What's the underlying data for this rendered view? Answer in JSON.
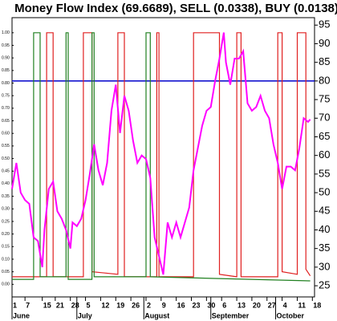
{
  "chart_data": {
    "type": "line",
    "title": "Money Flow Index (69.6689), SELL (0.0338), BUY (0.0138)",
    "xlim": [
      0,
      140
    ],
    "xticks": [
      {
        "value": 0,
        "label": "1"
      },
      {
        "value": 6,
        "label": "7"
      },
      {
        "value": 14,
        "label": "15"
      },
      {
        "value": 20,
        "label": "21"
      },
      {
        "value": 27,
        "label": "28"
      },
      {
        "value": 34,
        "label": "5"
      },
      {
        "value": 41,
        "label": "12"
      },
      {
        "value": 48,
        "label": "19"
      },
      {
        "value": 55,
        "label": "26"
      },
      {
        "value": 62,
        "label": "2"
      },
      {
        "value": 69,
        "label": "9"
      },
      {
        "value": 76,
        "label": "16"
      },
      {
        "value": 83,
        "label": "23"
      },
      {
        "value": 90,
        "label": "30"
      },
      {
        "value": 97,
        "label": "6"
      },
      {
        "value": 104,
        "label": "13"
      },
      {
        "value": 111,
        "label": "20"
      },
      {
        "value": 118,
        "label": "27"
      },
      {
        "value": 125,
        "label": "4"
      },
      {
        "value": 132,
        "label": "11"
      },
      {
        "value": 139,
        "label": "18"
      }
    ],
    "months": [
      {
        "value": 0,
        "label": "June"
      },
      {
        "value": 30,
        "label": "July"
      },
      {
        "value": 61,
        "label": "August"
      },
      {
        "value": 92,
        "label": "September"
      },
      {
        "value": 122,
        "label": "October"
      }
    ],
    "ylim": [
      -0.05,
      1.06
    ],
    "yticks": [
      {
        "value": 0,
        "label": "0.00"
      },
      0.05,
      {
        "value": 0.1,
        "label": "0.10"
      },
      0.15,
      {
        "value": 0.2,
        "label": "0.20"
      },
      0.25,
      {
        "value": 0.3,
        "label": "0.30"
      },
      0.35,
      {
        "value": 0.4,
        "label": "0.40"
      },
      0.45,
      {
        "value": 0.5,
        "label": "0.50"
      },
      0.55,
      {
        "value": 0.6,
        "label": "0.60"
      },
      0.65,
      {
        "value": 0.7,
        "label": "0.70"
      },
      0.75,
      {
        "value": 0.8,
        "label": "0.80"
      },
      0.85,
      {
        "value": 0.9,
        "label": "0.90"
      },
      0.95,
      {
        "value": 1,
        "label": "1.00"
      }
    ],
    "y2lim": [
      22,
      97
    ],
    "y2ticks": [
      25,
      30,
      35,
      40,
      45,
      50,
      55,
      60,
      65,
      70,
      75,
      80,
      85,
      90,
      95
    ],
    "hline": {
      "value": 80,
      "color": "#0000cc",
      "axis": "y2"
    },
    "series": [
      {
        "name": "SELL",
        "color": "#e02020",
        "x": [
          0,
          16,
          16,
          19,
          19,
          33,
          33,
          37,
          37,
          49,
          49,
          52,
          52,
          67,
          67,
          68,
          68,
          84,
          84,
          96,
          96,
          104,
          104,
          106,
          106,
          123,
          123,
          125,
          125,
          132,
          132,
          136,
          136,
          138
        ],
        "values": [
          0.03,
          0.03,
          1,
          1,
          0.03,
          0.03,
          1,
          1,
          0.05,
          0.04,
          1,
          1,
          0.03,
          0.03,
          1,
          1,
          0.03,
          0.03,
          1,
          1,
          0.04,
          0.03,
          1,
          1,
          0.03,
          0.03,
          1,
          1,
          0.05,
          0.04,
          1,
          1,
          0.06,
          0.0338
        ]
      },
      {
        "name": "BUY",
        "color": "#208020",
        "x": [
          0,
          10,
          10,
          13,
          13,
          25,
          25,
          26,
          26,
          37,
          37,
          38,
          38,
          62,
          62,
          64,
          64,
          138
        ],
        "values": [
          0.02,
          0.02,
          1,
          1,
          0.03,
          0.03,
          1,
          1,
          0.02,
          0.02,
          1,
          1,
          0.03,
          0.03,
          1,
          1,
          0.03,
          0.0138
        ]
      },
      {
        "name": "Money Flow Index",
        "color": "#ff00ff",
        "axis": "y2",
        "x": [
          0,
          2,
          4,
          6,
          8,
          10,
          12,
          14,
          15,
          17,
          19,
          21,
          23,
          25,
          27,
          28,
          30,
          32,
          34,
          36,
          38,
          40,
          42,
          44,
          46,
          48,
          50,
          52,
          54,
          56,
          58,
          60,
          62,
          64,
          66,
          68,
          70,
          72,
          74,
          76,
          78,
          80,
          82,
          84,
          86,
          88,
          90,
          92,
          94,
          96,
          98,
          99,
          101,
          103,
          105,
          107,
          109,
          111,
          113,
          115,
          117,
          119,
          121,
          123,
          125,
          127,
          129,
          131,
          133,
          135,
          137,
          138
        ],
        "values": [
          51,
          58,
          50,
          48,
          47,
          38,
          37,
          30,
          40,
          51,
          53,
          45,
          43,
          40,
          35,
          42,
          41,
          43,
          48,
          55,
          63,
          56,
          52,
          58,
          72,
          79,
          66,
          76,
          72,
          64,
          58,
          60,
          59,
          54,
          38,
          33,
          28,
          42,
          38,
          42,
          38,
          42,
          46,
          56,
          62,
          68,
          72,
          73,
          80,
          86,
          93,
          85,
          79,
          86,
          86,
          88,
          74,
          72,
          73,
          76,
          72,
          70,
          63,
          58,
          51,
          57,
          57,
          56,
          62,
          70,
          69,
          69.6689
        ]
      }
    ]
  }
}
